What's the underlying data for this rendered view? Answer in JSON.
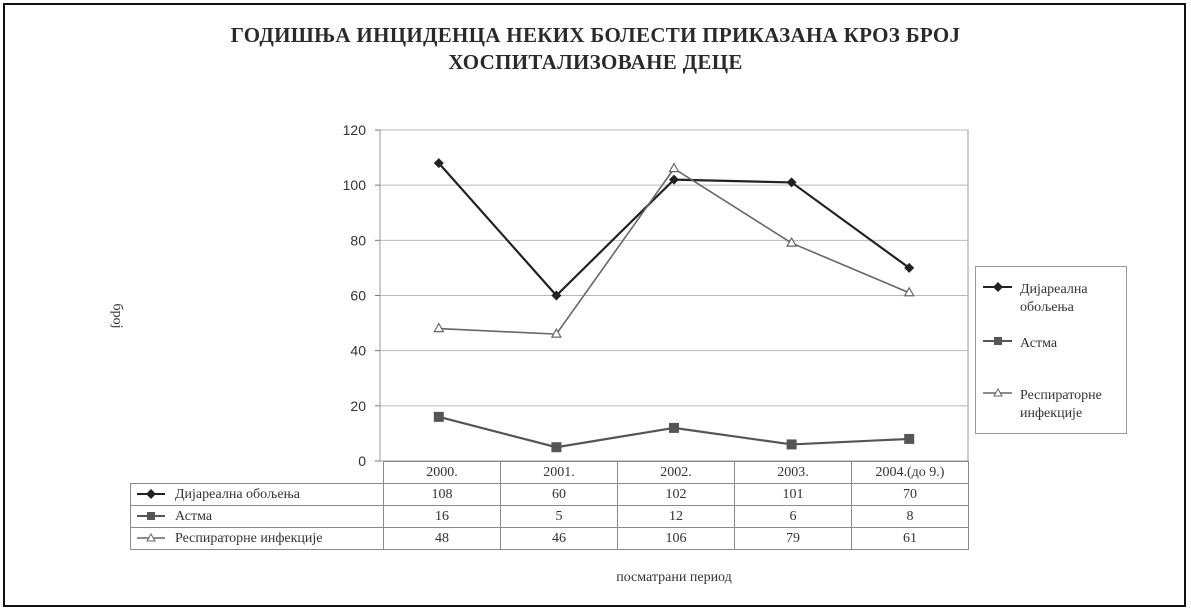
{
  "chart_data": {
    "type": "line",
    "title_line1": "ГОДИШЊА ИНЦИДЕНЦА НЕКИХ БОЛЕСТИ ПРИКАЗАНА КРОЗ БРОЈ",
    "title_line2": "ХОСПИТАЛИЗОВАНЕ ДЕЦЕ",
    "xlabel": "посматрани период",
    "ylabel": "број",
    "categories": [
      "2000.",
      "2001.",
      "2002.",
      "2003.",
      "2004.(до 9.)"
    ],
    "ylim": [
      0,
      120
    ],
    "yticks": [
      "0",
      "20",
      "40",
      "60",
      "80",
      "100",
      "120"
    ],
    "grid": true,
    "legend_position": "right",
    "series": [
      {
        "name": "Дијареална обољења",
        "legend_line1": "Дијареална",
        "legend_line2": "обољења",
        "values": [
          108,
          60,
          102,
          101,
          70
        ],
        "marker": "diamond",
        "color": "#222222"
      },
      {
        "name": "Астма",
        "legend_line1": "Астма",
        "legend_line2": "",
        "values": [
          16,
          5,
          12,
          6,
          8
        ],
        "marker": "square",
        "color": "#555555"
      },
      {
        "name": "Респираторне инфекције",
        "legend_line1": "Респираторне",
        "legend_line2": "инфекције",
        "values": [
          48,
          46,
          106,
          79,
          61
        ],
        "marker": "triangle-open",
        "color": "#666666"
      }
    ],
    "table": {
      "rows": [
        {
          "label": "Дијареална обољења",
          "cells": [
            "108",
            "60",
            "102",
            "101",
            "70"
          ]
        },
        {
          "label": "Астма",
          "cells": [
            "16",
            "5",
            "12",
            "6",
            "8"
          ]
        },
        {
          "label": "Респираторне инфекције",
          "cells": [
            "48",
            "46",
            "106",
            "79",
            "61"
          ]
        }
      ]
    }
  }
}
